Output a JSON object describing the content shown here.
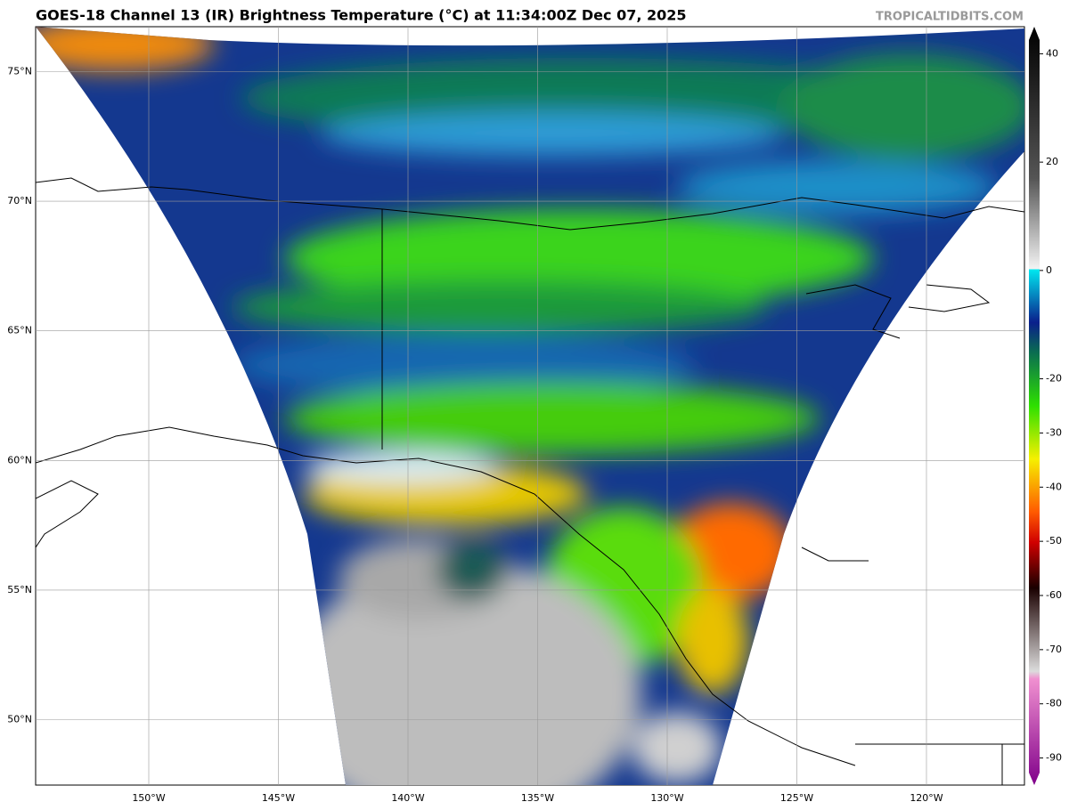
{
  "title": "GOES-18 Channel 13 (IR) Brightness Temperature (°C) at 11:34:00Z Dec 07, 2025",
  "credit": "TROPICALTIDBITS.COM",
  "latitude_labels": [
    "75°N",
    "70°N",
    "65°N",
    "60°N",
    "55°N",
    "50°N"
  ],
  "longitude_labels": [
    "150°W",
    "145°W",
    "140°W",
    "135°W",
    "130°W",
    "125°W",
    "120°W"
  ],
  "colorbar": {
    "clim": [
      -95,
      45
    ],
    "ticks": [
      40,
      20,
      0,
      -20,
      -30,
      -40,
      -50,
      -60,
      -70,
      -80,
      -90
    ]
  }
}
